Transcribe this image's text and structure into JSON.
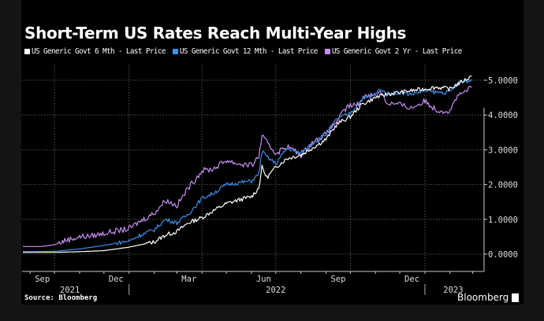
{
  "chart_data": {
    "type": "line",
    "title": "Short-Term US Rates Reach Multi-Year Highs",
    "source": "Source: Bloomberg",
    "brand": "Bloomberg",
    "xlim": [
      "2021-08-22",
      "2023-03-15"
    ],
    "ylim": [
      -0.5,
      5.8
    ],
    "y_ticks": [
      0,
      1,
      2,
      3,
      4,
      5
    ],
    "y_tick_labels": [
      "0.0000",
      "1.0000",
      "2.0000",
      "3.0000",
      "4.0000",
      "5.0000"
    ],
    "y_axis_side": "right",
    "x_month_ticks": [
      {
        "date": "2021-09-01",
        "label": "Sep"
      },
      {
        "date": "2021-12-01",
        "label": "Dec"
      },
      {
        "date": "2022-03-01",
        "label": "Mar"
      },
      {
        "date": "2022-06-01",
        "label": "Jun"
      },
      {
        "date": "2022-09-01",
        "label": "Sep"
      },
      {
        "date": "2022-12-01",
        "label": "Dec"
      }
    ],
    "x_year_labels": [
      {
        "label": "2021",
        "center": "2021-10-20"
      },
      {
        "label": "2022",
        "center": "2022-07-01"
      },
      {
        "label": "2023",
        "center": "2023-02-05"
      }
    ],
    "grid": true,
    "legend_position": "top-left",
    "series": [
      {
        "name": "US Generic Govt 6 Mth - Last Price",
        "color": "#ffffff",
        "x": [
          "2021-08-23",
          "2021-10-01",
          "2021-11-01",
          "2021-12-01",
          "2022-01-01",
          "2022-02-01",
          "2022-02-15",
          "2022-03-01",
          "2022-03-15",
          "2022-04-01",
          "2022-04-15",
          "2022-05-01",
          "2022-05-15",
          "2022-06-01",
          "2022-06-10",
          "2022-06-14",
          "2022-06-20",
          "2022-07-01",
          "2022-07-15",
          "2022-08-01",
          "2022-08-15",
          "2022-09-01",
          "2022-09-15",
          "2022-10-01",
          "2022-10-15",
          "2022-11-01",
          "2022-11-15",
          "2022-12-01",
          "2022-12-15",
          "2023-01-01",
          "2023-01-15",
          "2023-02-01",
          "2023-02-15",
          "2023-02-28"
        ],
        "y": [
          0.05,
          0.05,
          0.07,
          0.1,
          0.2,
          0.35,
          0.55,
          0.65,
          0.9,
          1.05,
          1.25,
          1.45,
          1.55,
          1.65,
          1.9,
          2.5,
          2.2,
          2.5,
          2.75,
          2.85,
          3.05,
          3.3,
          3.75,
          3.95,
          4.3,
          4.5,
          4.6,
          4.65,
          4.7,
          4.75,
          4.8,
          4.75,
          4.95,
          5.12
        ]
      },
      {
        "name": "US Generic Govt 12 Mth - Last Price",
        "color": "#3d8ee8",
        "x": [
          "2021-08-23",
          "2021-10-01",
          "2021-11-01",
          "2021-12-01",
          "2022-01-01",
          "2022-01-15",
          "2022-02-01",
          "2022-02-15",
          "2022-03-01",
          "2022-03-15",
          "2022-04-01",
          "2022-04-15",
          "2022-05-01",
          "2022-05-15",
          "2022-06-01",
          "2022-06-10",
          "2022-06-14",
          "2022-06-20",
          "2022-07-01",
          "2022-07-15",
          "2022-08-01",
          "2022-08-15",
          "2022-09-01",
          "2022-09-15",
          "2022-10-01",
          "2022-10-15",
          "2022-11-01",
          "2022-11-07",
          "2022-11-15",
          "2022-12-01",
          "2022-12-15",
          "2023-01-01",
          "2023-01-15",
          "2023-02-01",
          "2023-02-07",
          "2023-02-15",
          "2023-02-28"
        ],
        "y": [
          0.07,
          0.08,
          0.15,
          0.25,
          0.38,
          0.55,
          0.7,
          1.0,
          0.9,
          1.15,
          1.6,
          1.75,
          2.0,
          2.05,
          2.1,
          2.3,
          2.95,
          2.8,
          2.6,
          3.05,
          2.9,
          3.2,
          3.45,
          3.9,
          4.05,
          4.45,
          4.6,
          4.75,
          4.6,
          4.65,
          4.6,
          4.7,
          4.65,
          4.65,
          4.85,
          4.95,
          5.0
        ]
      },
      {
        "name": "US Generic Govt 2 Yr - Last Price",
        "color": "#c58ef0",
        "x": [
          "2021-08-23",
          "2021-09-15",
          "2021-10-01",
          "2021-10-15",
          "2021-11-01",
          "2021-11-15",
          "2021-12-01",
          "2022-01-01",
          "2022-01-15",
          "2022-02-01",
          "2022-02-15",
          "2022-03-01",
          "2022-03-15",
          "2022-04-01",
          "2022-04-15",
          "2022-05-01",
          "2022-05-15",
          "2022-06-01",
          "2022-06-10",
          "2022-06-14",
          "2022-06-20",
          "2022-07-01",
          "2022-07-15",
          "2022-08-01",
          "2022-08-15",
          "2022-09-01",
          "2022-09-15",
          "2022-09-28",
          "2022-10-10",
          "2022-10-21",
          "2022-11-01",
          "2022-11-07",
          "2022-11-15",
          "2022-12-01",
          "2022-12-15",
          "2023-01-01",
          "2023-01-15",
          "2023-02-01",
          "2023-02-07",
          "2023-02-15",
          "2023-02-28"
        ],
        "y": [
          0.22,
          0.22,
          0.27,
          0.4,
          0.5,
          0.52,
          0.6,
          0.73,
          0.95,
          1.18,
          1.55,
          1.4,
          1.9,
          2.4,
          2.45,
          2.7,
          2.6,
          2.55,
          2.8,
          3.4,
          3.2,
          2.9,
          3.1,
          2.85,
          3.2,
          3.45,
          3.85,
          4.25,
          4.3,
          4.6,
          4.55,
          4.7,
          4.35,
          4.3,
          4.2,
          4.4,
          4.15,
          4.1,
          4.45,
          4.6,
          4.8
        ]
      }
    ]
  }
}
